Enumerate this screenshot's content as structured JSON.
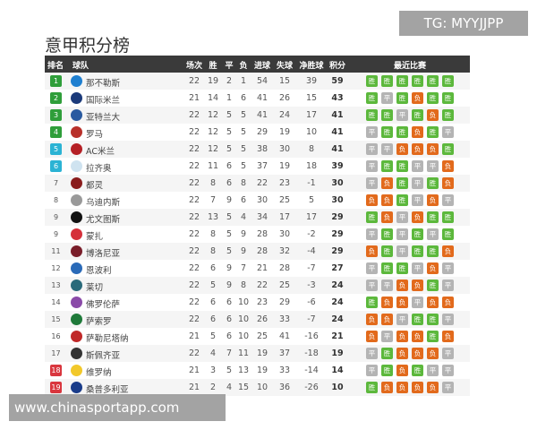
{
  "title": "意甲积分榜",
  "headers": {
    "rank": "排名",
    "team": "球队",
    "played": "场次",
    "w": "胜",
    "d": "平",
    "l": "负",
    "gf": "进球",
    "ga": "失球",
    "gd": "净胜球",
    "pts": "积分",
    "form": "最近比赛"
  },
  "form_labels": {
    "W": "胜",
    "D": "平",
    "L": "负"
  },
  "colors": {
    "win": "#5cb83c",
    "draw": "#b4b4b4",
    "loss": "#e26a1c",
    "ucl": "#2f9e3a",
    "uel": "#2bb3d4",
    "relegation": "#d9363e",
    "header": "#3a3a3a"
  },
  "rows": [
    {
      "rank": "1",
      "zone": "g",
      "team": "那不勒斯",
      "logo": "#1e7fd0",
      "p": "22",
      "w": "19",
      "d": "2",
      "l": "1",
      "gf": "54",
      "ga": "15",
      "gd": "39",
      "pts": "59",
      "form": "WWWWWW"
    },
    {
      "rank": "2",
      "zone": "g",
      "team": "国际米兰",
      "logo": "#1b3a7a",
      "p": "21",
      "w": "14",
      "d": "1",
      "l": "6",
      "gf": "41",
      "ga": "26",
      "gd": "15",
      "pts": "43",
      "form": "WDWLWW"
    },
    {
      "rank": "3",
      "zone": "g",
      "team": "亚特兰大",
      "logo": "#2a5aa0",
      "p": "22",
      "w": "12",
      "d": "5",
      "l": "5",
      "gf": "41",
      "ga": "24",
      "gd": "17",
      "pts": "41",
      "form": "WWDWLW"
    },
    {
      "rank": "4",
      "zone": "g",
      "team": "罗马",
      "logo": "#b8302a",
      "p": "22",
      "w": "12",
      "d": "5",
      "l": "5",
      "gf": "29",
      "ga": "19",
      "gd": "10",
      "pts": "41",
      "form": "DWWLWD"
    },
    {
      "rank": "5",
      "zone": "t",
      "team": "AC米兰",
      "logo": "#b52025",
      "p": "22",
      "w": "12",
      "d": "5",
      "l": "5",
      "gf": "38",
      "ga": "30",
      "gd": "8",
      "pts": "41",
      "form": "DDLLLW"
    },
    {
      "rank": "6",
      "zone": "t",
      "team": "拉齐奥",
      "logo": "#cfe3f0",
      "p": "22",
      "w": "11",
      "d": "6",
      "l": "5",
      "gf": "37",
      "ga": "19",
      "gd": "18",
      "pts": "39",
      "form": "DWWDDL"
    },
    {
      "rank": "7",
      "zone": "",
      "team": "都灵",
      "logo": "#8a1c1c",
      "p": "22",
      "w": "8",
      "d": "6",
      "l": "8",
      "gf": "22",
      "ga": "23",
      "gd": "-1",
      "pts": "30",
      "form": "DLWDWL"
    },
    {
      "rank": "8",
      "zone": "",
      "team": "乌迪内斯",
      "logo": "#999999",
      "p": "22",
      "w": "7",
      "d": "9",
      "l": "6",
      "gf": "30",
      "ga": "25",
      "gd": "5",
      "pts": "30",
      "form": "LLWDLD"
    },
    {
      "rank": "9",
      "zone": "",
      "team": "尤文图斯",
      "logo": "#111111",
      "p": "22",
      "w": "13",
      "d": "5",
      "l": "4",
      "gf": "34",
      "ga": "17",
      "gd": "17",
      "pts": "29",
      "form": "WLDLWW"
    },
    {
      "rank": "9",
      "zone": "",
      "team": "蒙扎",
      "logo": "#d5303a",
      "p": "22",
      "w": "8",
      "d": "5",
      "l": "9",
      "gf": "28",
      "ga": "30",
      "gd": "-2",
      "pts": "29",
      "form": "DWDWDW"
    },
    {
      "rank": "11",
      "zone": "",
      "team": "博洛尼亚",
      "logo": "#7a1e2a",
      "p": "22",
      "w": "8",
      "d": "5",
      "l": "9",
      "gf": "28",
      "ga": "32",
      "gd": "-4",
      "pts": "29",
      "form": "LWDWWL"
    },
    {
      "rank": "12",
      "zone": "",
      "team": "恩波利",
      "logo": "#2a6ab8",
      "p": "22",
      "w": "6",
      "d": "9",
      "l": "7",
      "gf": "21",
      "ga": "28",
      "gd": "-7",
      "pts": "27",
      "form": "DWWDLD"
    },
    {
      "rank": "13",
      "zone": "",
      "team": "莱切",
      "logo": "#2a6a7a",
      "p": "22",
      "w": "5",
      "d": "9",
      "l": "8",
      "gf": "22",
      "ga": "25",
      "gd": "-3",
      "pts": "24",
      "form": "DDLLWD"
    },
    {
      "rank": "14",
      "zone": "",
      "team": "佛罗伦萨",
      "logo": "#8a4aa8",
      "p": "22",
      "w": "6",
      "d": "6",
      "l": "10",
      "gf": "23",
      "ga": "29",
      "gd": "-6",
      "pts": "24",
      "form": "WLLDLL"
    },
    {
      "rank": "15",
      "zone": "",
      "team": "萨索罗",
      "logo": "#1f7a3a",
      "p": "22",
      "w": "6",
      "d": "6",
      "l": "10",
      "gf": "26",
      "ga": "33",
      "gd": "-7",
      "pts": "24",
      "form": "LLDWWD"
    },
    {
      "rank": "16",
      "zone": "",
      "team": "萨勒尼塔纳",
      "logo": "#c02828",
      "p": "21",
      "w": "5",
      "d": "6",
      "l": "10",
      "gf": "25",
      "ga": "41",
      "gd": "-16",
      "pts": "21",
      "form": "LDLLWL"
    },
    {
      "rank": "17",
      "zone": "",
      "team": "斯佩齐亚",
      "logo": "#333333",
      "p": "22",
      "w": "4",
      "d": "7",
      "l": "11",
      "gf": "19",
      "ga": "37",
      "gd": "-18",
      "pts": "19",
      "form": "DWLLLD"
    },
    {
      "rank": "18",
      "zone": "r",
      "team": "维罗纳",
      "logo": "#f2c82a",
      "p": "21",
      "w": "3",
      "d": "5",
      "l": "13",
      "gf": "19",
      "ga": "33",
      "gd": "-14",
      "pts": "14",
      "form": "DWLWDD"
    },
    {
      "rank": "19",
      "zone": "r",
      "team": "桑普多利亚",
      "logo": "#1a3c8a",
      "p": "21",
      "w": "2",
      "d": "4",
      "l": "15",
      "gf": "10",
      "ga": "36",
      "gd": "-26",
      "pts": "10",
      "form": "WLLLLD"
    }
  ],
  "watermarks": {
    "top": "TG: MYYJJPP",
    "bottom": "www.chinasportapp.com"
  }
}
